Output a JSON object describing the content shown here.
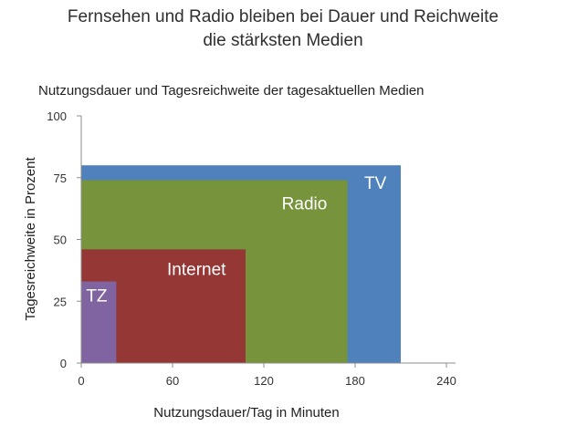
{
  "page": {
    "title_line1": "Fernsehen und Radio bleiben bei Dauer und Reichweite",
    "title_line2": "die stärksten Medien"
  },
  "chart_data": {
    "type": "bar",
    "title": "Nutzungsdauer und Tagesreichweite der tagesaktuellen Medien",
    "xlabel": "Nutzungsdauer/Tag in Minuten",
    "ylabel": "Tagesreichweite in Prozent",
    "xlim": [
      0,
      240
    ],
    "ylim": [
      0,
      100
    ],
    "xticks": [
      0,
      60,
      120,
      180,
      240
    ],
    "yticks": [
      0,
      25,
      50,
      75,
      100
    ],
    "grid": false,
    "series": [
      {
        "name": "TV",
        "x": 210,
        "y": 80,
        "color": "#4F81BD"
      },
      {
        "name": "Radio",
        "x": 175,
        "y": 74,
        "color": "#77933C"
      },
      {
        "name": "Internet",
        "x": 108,
        "y": 46,
        "color": "#953735"
      },
      {
        "name": "TZ",
        "x": 23,
        "y": 33,
        "color": "#8064A2"
      }
    ]
  }
}
